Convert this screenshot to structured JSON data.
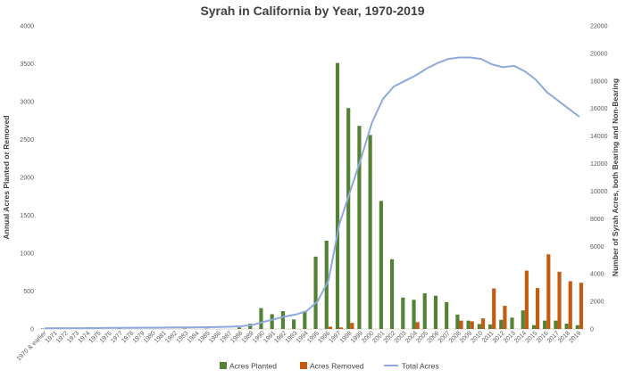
{
  "chart_data": {
    "type": "bar",
    "title": "Syrah in California by Year, 1970-2019",
    "ylabel_left": "Annual Acres Planted or Removed",
    "ylabel_right": "Number of Syrah Acres, both Bearing and Non-Bearing",
    "ylim_left": [
      0,
      4000
    ],
    "ylim_right": [
      0,
      22000
    ],
    "yticks_left": [
      0,
      500,
      1000,
      1500,
      2000,
      2500,
      3000,
      3500,
      4000
    ],
    "yticks_right": [
      0,
      2000,
      4000,
      6000,
      8000,
      10000,
      12000,
      14000,
      16000,
      18000,
      20000,
      22000
    ],
    "grid": false,
    "legend_position": "bottom",
    "categories": [
      "1970 & earlier",
      "1971",
      "1972",
      "1973",
      "1974",
      "1975",
      "1976",
      "1977",
      "1978",
      "1979",
      "1980",
      "1981",
      "1982",
      "1983",
      "1984",
      "1985",
      "1986",
      "1987",
      "1988",
      "1989",
      "1990",
      "1991",
      "1992",
      "1993",
      "1994",
      "1995",
      "1996",
      "1997",
      "1998",
      "1999",
      "2000",
      "2001",
      "2002",
      "2003",
      "2004",
      "2005",
      "2006",
      "2007",
      "2008",
      "2009",
      "2010",
      "2011",
      "2012",
      "2013",
      "2014",
      "2015",
      "2016",
      "2017",
      "2018",
      "2019"
    ],
    "series": [
      {
        "name": "Acres Planted",
        "type": "bar",
        "axis": "left",
        "color": "#548235",
        "values": [
          5,
          0,
          0,
          0,
          0,
          15,
          0,
          10,
          0,
          0,
          0,
          0,
          0,
          5,
          0,
          5,
          0,
          0,
          20,
          70,
          275,
          195,
          235,
          125,
          230,
          955,
          1165,
          3510,
          2915,
          2680,
          2560,
          1690,
          920,
          415,
          385,
          470,
          440,
          355,
          190,
          110,
          65,
          60,
          120,
          150,
          245,
          50,
          110,
          110,
          70,
          50
        ]
      },
      {
        "name": "Acres Removed",
        "type": "bar",
        "axis": "left",
        "color": "#C55A11",
        "values": [
          0,
          0,
          0,
          0,
          0,
          0,
          0,
          0,
          0,
          0,
          0,
          0,
          0,
          0,
          0,
          0,
          0,
          0,
          0,
          0,
          0,
          0,
          0,
          0,
          0,
          0,
          30,
          20,
          80,
          0,
          0,
          0,
          0,
          0,
          90,
          0,
          0,
          0,
          110,
          100,
          140,
          535,
          305,
          0,
          770,
          540,
          985,
          755,
          630,
          610
        ]
      },
      {
        "name": "Total Acres",
        "type": "line",
        "axis": "right",
        "color": "#8EA9DB",
        "values": [
          50,
          55,
          60,
          60,
          65,
          75,
          80,
          85,
          90,
          95,
          100,
          105,
          110,
          115,
          120,
          130,
          145,
          165,
          200,
          280,
          500,
          700,
          900,
          1050,
          1300,
          2000,
          3500,
          7600,
          10000,
          12400,
          15000,
          16700,
          17600,
          18000,
          18400,
          18900,
          19300,
          19600,
          19700,
          19700,
          19600,
          19200,
          19000,
          19100,
          18700,
          18100,
          17200,
          16600,
          16000,
          15400
        ]
      }
    ]
  }
}
